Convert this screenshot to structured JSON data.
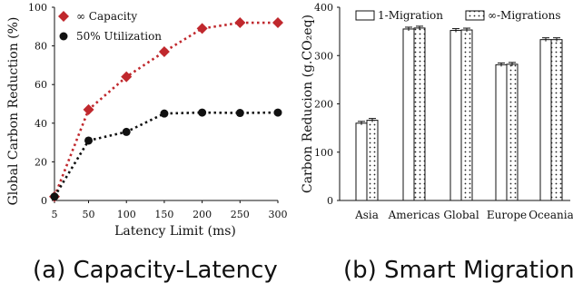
{
  "captions": {
    "left": "(a) Capacity-Latency",
    "right": "(b) Smart Migration"
  },
  "chart_data": [
    {
      "type": "line",
      "title": "",
      "xlabel": "Latency Limit (ms)",
      "ylabel": "Global Carbon Reduction (%)",
      "x": [
        5,
        50,
        100,
        150,
        200,
        250,
        300
      ],
      "x_ticks": [
        "5",
        "50",
        "100",
        "150",
        "200",
        "250",
        "300"
      ],
      "ylim": [
        0,
        100
      ],
      "y_ticks": [
        "0",
        "20",
        "40",
        "60",
        "80",
        "100"
      ],
      "grid": false,
      "legend_position": "top-left",
      "series": [
        {
          "name": "∞ Capacity",
          "color": "#c0282d",
          "marker": "diamond",
          "values": [
            2,
            47,
            64,
            77,
            89,
            92,
            92
          ]
        },
        {
          "name": "50% Utilization",
          "color": "#111111",
          "marker": "circle",
          "values": [
            2,
            31,
            35.5,
            45,
            45.5,
            45.3,
            45.5
          ]
        }
      ]
    },
    {
      "type": "bar",
      "title": "",
      "xlabel": "",
      "ylabel": "Carbon Reducion (g.CO₂eq)",
      "categories": [
        "Asia",
        "Americas",
        "Global",
        "Europe",
        "Oceania"
      ],
      "ylim": [
        0,
        400
      ],
      "y_ticks": [
        "0",
        "100",
        "200",
        "300",
        "400"
      ],
      "grid": false,
      "legend_position": "top",
      "series": [
        {
          "name": "1-Migration",
          "fill": "white",
          "values": [
            160,
            355,
            352,
            281,
            333
          ]
        },
        {
          "name": "∞-Migrations",
          "fill": "dotted",
          "values": [
            166,
            357,
            353,
            282,
            333
          ]
        }
      ]
    }
  ]
}
